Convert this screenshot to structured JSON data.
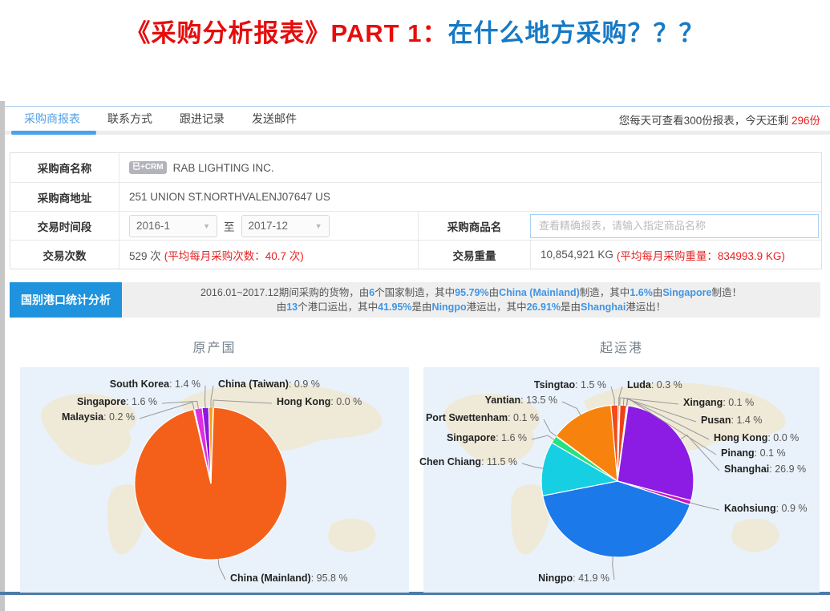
{
  "header": {
    "title_red": "《采购分析报表》PART 1：",
    "title_blue": "在什么地方采购？？？"
  },
  "tabbar": {
    "tabs": [
      {
        "label": "采购商报表",
        "active": true
      },
      {
        "label": "联系方式",
        "active": false
      },
      {
        "label": "跟进记录",
        "active": false
      },
      {
        "label": "发送邮件",
        "active": false
      }
    ],
    "quota_prefix": "您每天可查看300份报表，今天还剩 ",
    "quota_remaining": "296份"
  },
  "info": {
    "buyer_name_label": "采购商名称",
    "buyer_name_badge": "已+CRM",
    "buyer_name": "RAB LIGHTING INC.",
    "buyer_addr_label": "采购商地址",
    "buyer_addr": "251 UNION ST.NORTHVALENJ07647 US",
    "period_label": "交易时间段",
    "period_from": "2016-1",
    "period_join": "至",
    "period_to": "2017-12",
    "product_label": "采购商品名",
    "product_placeholder": "查看精确报表，请输入指定商品名称",
    "count_label": "交易次数",
    "count_value": "529 次",
    "count_note": "(平均每月采购次数：40.7 次)",
    "weight_label": "交易重量",
    "weight_value": "10,854,921 KG",
    "weight_note": "(平均每月采购重量：834993.9 KG)"
  },
  "stats_banner": {
    "label": "国别港口统计分析",
    "line1": [
      {
        "t": "2016.01~2017.12期间采购的货物，由",
        "h": false
      },
      {
        "t": "6",
        "h": true
      },
      {
        "t": "个国家制造，其中",
        "h": false
      },
      {
        "t": "95.79%",
        "h": true
      },
      {
        "t": "由",
        "h": false
      },
      {
        "t": "China (Mainland)",
        "h": true
      },
      {
        "t": "制造，其中",
        "h": false
      },
      {
        "t": "1.6%",
        "h": true
      },
      {
        "t": "由",
        "h": false
      },
      {
        "t": "Singapore",
        "h": true
      },
      {
        "t": "制造！",
        "h": false
      }
    ],
    "line2": [
      {
        "t": "由",
        "h": false
      },
      {
        "t": "13",
        "h": true
      },
      {
        "t": "个港口运出，其中",
        "h": false
      },
      {
        "t": "41.95%",
        "h": true
      },
      {
        "t": "是由",
        "h": false
      },
      {
        "t": "Ningpo",
        "h": true
      },
      {
        "t": "港运出，其中",
        "h": false
      },
      {
        "t": "26.91%",
        "h": true
      },
      {
        "t": "是由",
        "h": false
      },
      {
        "t": "Shanghai",
        "h": true
      },
      {
        "t": "港运出！",
        "h": false
      }
    ]
  },
  "chart_data": [
    {
      "type": "pie",
      "title": "原产国",
      "background": "#e9f2fa",
      "slices": [
        {
          "name": "China (Mainland)",
          "value": 95.8,
          "color": "#f4601a"
        },
        {
          "name": "Malaysia",
          "value": 0.2,
          "color": "#ff2d87"
        },
        {
          "name": "Singapore",
          "value": 1.6,
          "color": "#e22ce2"
        },
        {
          "name": "South Korea",
          "value": 1.4,
          "color": "#8d18dd"
        },
        {
          "name": "China (Taiwan)",
          "value": 0.9,
          "color": "#f5a10f"
        },
        {
          "name": "Hong Kong",
          "value": 0.0,
          "color": "#9aa0a6"
        }
      ]
    },
    {
      "type": "pie",
      "title": "起运港",
      "background": "#e9f2fa",
      "slices": [
        {
          "name": "Shanghai",
          "value": 26.9,
          "color": "#8c1ce4"
        },
        {
          "name": "Kaohsiung",
          "value": 0.9,
          "color": "#c516c5"
        },
        {
          "name": "Ningpo",
          "value": 41.9,
          "color": "#1b79ea"
        },
        {
          "name": "Chen Chiang",
          "value": 11.5,
          "color": "#17cfe3"
        },
        {
          "name": "Singapore",
          "value": 1.6,
          "color": "#25e27f"
        },
        {
          "name": "Port Swettenham",
          "value": 0.1,
          "color": "#7ce31f"
        },
        {
          "name": "Yantian",
          "value": 13.5,
          "color": "#f8820e"
        },
        {
          "name": "Tsingtao",
          "value": 1.5,
          "color": "#f4491c"
        },
        {
          "name": "Luda",
          "value": 0.3,
          "color": "#f43a1c"
        },
        {
          "name": "Xingang",
          "value": 0.1,
          "color": "#f4611a"
        },
        {
          "name": "Pusan",
          "value": 1.4,
          "color": "#ef4116"
        },
        {
          "name": "Hong Kong",
          "value": 0.0,
          "color": "#9aa0a6"
        },
        {
          "name": "Pinang",
          "value": 0.1,
          "color": "#f4a81c"
        }
      ]
    }
  ],
  "colors": {
    "accent_blue": "#4da0ee",
    "banner_blue": "#1f93dd",
    "alert_red": "#e62222",
    "highlight_blue": "#3f95e4"
  }
}
